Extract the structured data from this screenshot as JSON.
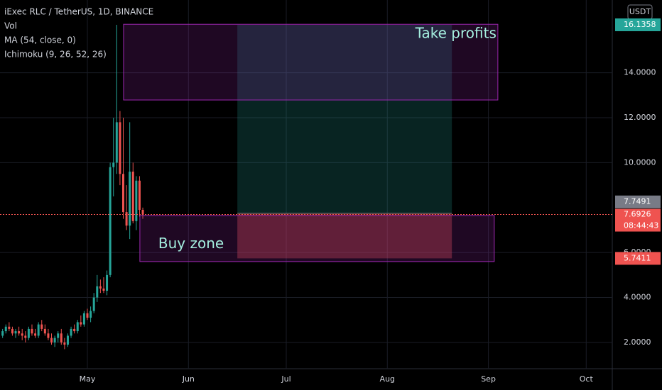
{
  "chart_data": {
    "type": "candlestick",
    "title": "iExec RLC / TetherUS, 1D, BINANCE",
    "indicators": [
      "Vol",
      "MA (54, close, 0)",
      "Ichimoku (9, 26, 52, 26)"
    ],
    "currency": "USDT",
    "x": [
      95,
      96,
      97,
      98,
      99,
      100,
      101,
      102,
      103,
      104,
      105,
      106,
      107,
      108,
      109,
      110,
      111,
      112,
      113,
      114,
      115,
      116,
      117,
      118,
      119,
      120,
      121,
      122,
      123,
      124,
      125,
      126,
      127,
      128,
      129,
      130,
      131,
      132,
      133,
      134,
      135,
      136,
      137,
      138
    ],
    "open": [
      2.3,
      2.5,
      2.7,
      2.6,
      2.4,
      2.5,
      2.4,
      2.3,
      2.2,
      2.6,
      2.4,
      2.3,
      2.8,
      2.6,
      2.4,
      2.2,
      2.0,
      2.2,
      2.4,
      2.0,
      1.9,
      2.3,
      2.6,
      2.5,
      2.9,
      2.8,
      3.3,
      3.1,
      3.4,
      4.0,
      4.5,
      4.4,
      4.3,
      5.0,
      9.8,
      10.0,
      11.8,
      9.5,
      7.8,
      7.2,
      9.6,
      7.4,
      9.2,
      7.9
    ],
    "high": [
      2.6,
      2.8,
      2.9,
      2.7,
      2.6,
      2.7,
      2.6,
      2.5,
      2.7,
      2.8,
      2.6,
      2.9,
      3.0,
      2.8,
      2.6,
      2.4,
      2.3,
      2.5,
      2.6,
      2.2,
      2.4,
      2.7,
      2.8,
      3.0,
      3.2,
      3.4,
      3.5,
      3.6,
      4.2,
      5.0,
      4.8,
      4.9,
      5.2,
      10.0,
      12.0,
      16.1358,
      12.3,
      12.0,
      9.0,
      11.8,
      10.0,
      9.4,
      9.4,
      8.0
    ],
    "low": [
      2.2,
      2.4,
      2.5,
      2.3,
      2.2,
      2.3,
      2.1,
      2.0,
      2.1,
      2.3,
      2.2,
      2.2,
      2.5,
      2.3,
      2.1,
      1.9,
      1.8,
      2.0,
      1.9,
      1.7,
      1.8,
      2.2,
      2.4,
      2.4,
      2.7,
      2.7,
      3.0,
      2.9,
      3.3,
      3.8,
      4.2,
      4.2,
      4.1,
      4.9,
      8.5,
      9.5,
      9.0,
      7.5,
      7.0,
      6.6,
      7.3,
      7.0,
      7.6,
      7.5
    ],
    "close": [
      2.5,
      2.7,
      2.6,
      2.4,
      2.5,
      2.4,
      2.3,
      2.2,
      2.6,
      2.4,
      2.3,
      2.8,
      2.6,
      2.4,
      2.2,
      2.0,
      2.2,
      2.4,
      2.0,
      1.9,
      2.3,
      2.6,
      2.5,
      2.9,
      2.8,
      3.3,
      3.1,
      3.4,
      4.0,
      4.5,
      4.4,
      4.3,
      5.0,
      9.8,
      10.0,
      11.8,
      9.5,
      7.8,
      7.2,
      9.6,
      7.4,
      9.2,
      7.9,
      7.6926
    ],
    "up_color": "#26a69a",
    "down_color": "#ef5350",
    "xlim": [
      94.2,
      282
    ],
    "xticks": [
      {
        "value": 121,
        "label": "May"
      },
      {
        "value": 152,
        "label": "Jun"
      },
      {
        "value": 182,
        "label": "Jul"
      },
      {
        "value": 213,
        "label": "Aug"
      },
      {
        "value": 244,
        "label": "Sep"
      },
      {
        "value": 274,
        "label": "Oct"
      }
    ],
    "ylim": [
      0.83,
      17.24
    ],
    "yticks": [
      {
        "value": 2,
        "label": "2.0000"
      },
      {
        "value": 4,
        "label": "4.0000"
      },
      {
        "value": 6,
        "label": "6.0000"
      },
      {
        "value": 10,
        "label": "10.0000"
      },
      {
        "value": 12,
        "label": "12.0000"
      },
      {
        "value": 14,
        "label": "14.0000"
      }
    ],
    "zones": [
      {
        "label": "Take profits",
        "x": [
          132.1,
          246.9
        ],
        "y": [
          12.79,
          16.16
        ]
      },
      {
        "label": "Buy zone",
        "x": [
          137.1,
          245.8
        ],
        "y": [
          5.6,
          7.65
        ]
      }
    ],
    "position": {
      "x": [
        167,
        232.8
      ],
      "entry": 7.7491,
      "target": 16.1358,
      "stop": 5.7411
    },
    "last_price": 7.6926,
    "countdown": "08:44:43"
  }
}
